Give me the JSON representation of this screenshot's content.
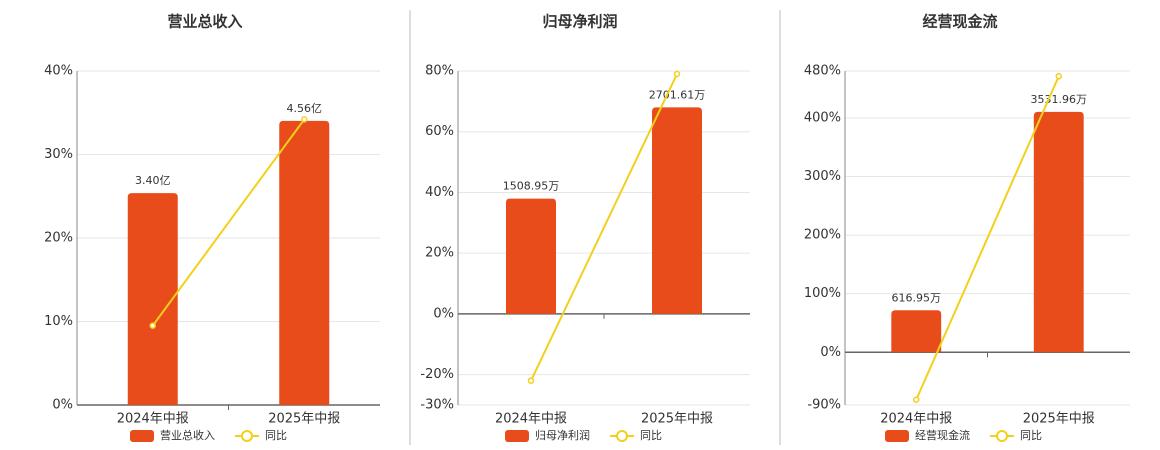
{
  "chart_data": [
    {
      "type": "bar",
      "title": "营业总收入",
      "categories": [
        "2024年中报",
        "2025年中报"
      ],
      "ylim": [
        0,
        40
      ],
      "yticks": [
        {
          "value": 0,
          "label": "0%"
        },
        {
          "value": 10,
          "label": "10%"
        },
        {
          "value": 20,
          "label": "20%"
        },
        {
          "value": 30,
          "label": "30%"
        },
        {
          "value": 40,
          "label": "40%"
        }
      ],
      "y2lim": [
        0,
        5.36
      ],
      "grid": true,
      "series": [
        {
          "name": "营业总收入",
          "type": "bar",
          "color": "#e84c1a",
          "axis": "y2",
          "values": [
            3.4,
            4.56
          ],
          "value_labels": [
            "3.40亿",
            "4.56亿"
          ]
        },
        {
          "name": "同比",
          "type": "line",
          "color": "#f2d01c",
          "values": [
            9.5,
            34.2
          ]
        }
      ]
    },
    {
      "type": "bar",
      "title": "归母净利润",
      "categories": [
        "2024年中报",
        "2025年中报"
      ],
      "ylim": [
        -30,
        80
      ],
      "yticks": [
        {
          "value": -30,
          "label": "-30%"
        },
        {
          "value": -20,
          "label": "-20%"
        },
        {
          "value": 0,
          "label": "0%"
        },
        {
          "value": 20,
          "label": "20%"
        },
        {
          "value": 40,
          "label": "40%"
        },
        {
          "value": 60,
          "label": "60%"
        },
        {
          "value": 80,
          "label": "80%"
        }
      ],
      "y2lim": [
        -1192,
        3178
      ],
      "grid": true,
      "series": [
        {
          "name": "归母净利润",
          "type": "bar",
          "color": "#e84c1a",
          "axis": "y2",
          "values": [
            1508.95,
            2701.61
          ],
          "value_labels": [
            "1508.95万",
            "2701.61万"
          ]
        },
        {
          "name": "同比",
          "type": "line",
          "color": "#f2d01c",
          "values": [
            -22,
            79
          ]
        }
      ]
    },
    {
      "type": "bar",
      "title": "经营现金流",
      "categories": [
        "2024年中报",
        "2025年中报"
      ],
      "ylim": [
        -90,
        480
      ],
      "yticks": [
        {
          "value": -90,
          "label": "-90%"
        },
        {
          "value": 0,
          "label": "0%"
        },
        {
          "value": 100,
          "label": "100%"
        },
        {
          "value": 200,
          "label": "200%"
        },
        {
          "value": 300,
          "label": "300%"
        },
        {
          "value": 400,
          "label": "400%"
        },
        {
          "value": 480,
          "label": "480%"
        }
      ],
      "y2lim": [
        -775,
        4133
      ],
      "grid": true,
      "series": [
        {
          "name": "经营现金流",
          "type": "bar",
          "color": "#e84c1a",
          "axis": "y2",
          "values": [
            616.95,
            3531.96
          ],
          "value_labels": [
            "616.95万",
            "3531.96万"
          ]
        },
        {
          "name": "同比",
          "type": "line",
          "color": "#f2d01c",
          "values": [
            -81,
            471
          ]
        }
      ]
    }
  ]
}
